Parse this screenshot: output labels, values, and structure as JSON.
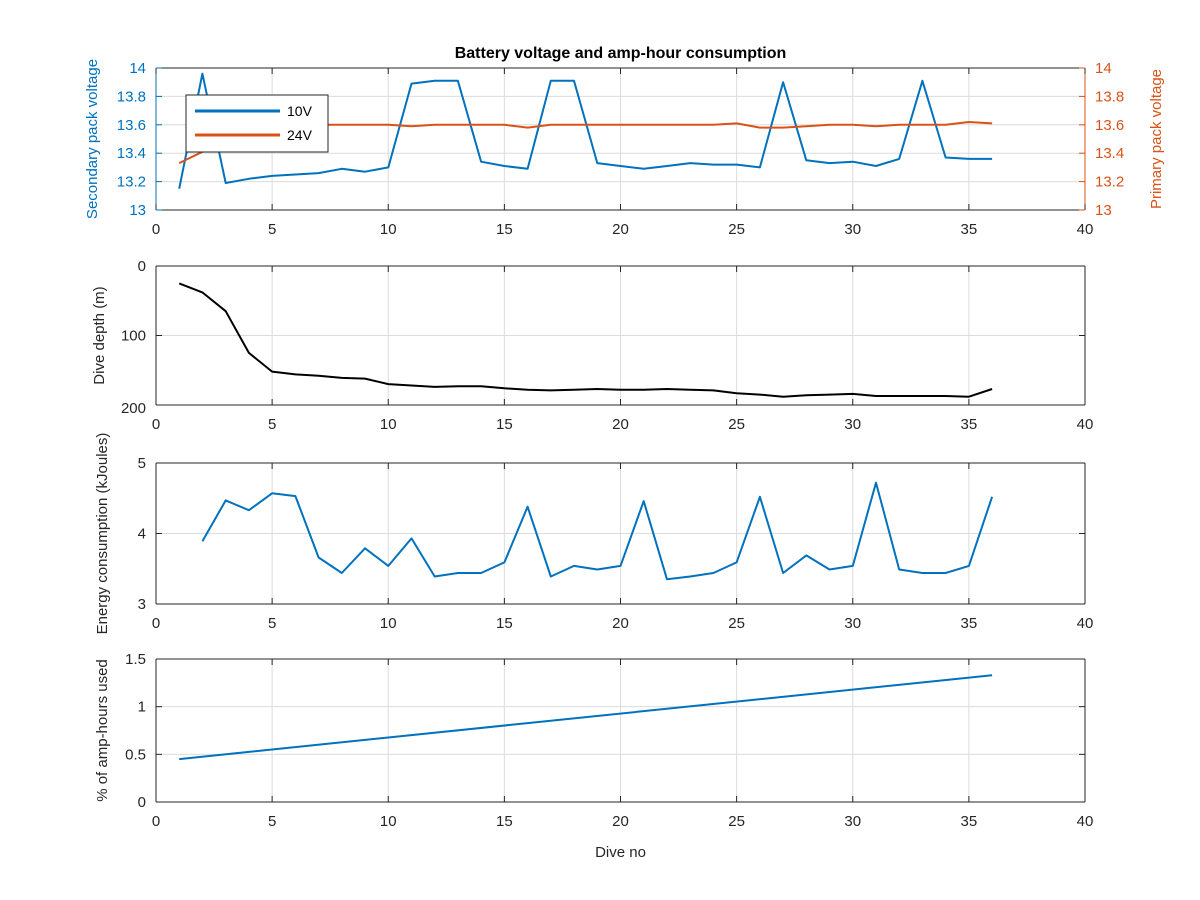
{
  "colors": {
    "blue": "#0072BD",
    "orange": "#D95319",
    "left_axis_blue": "#0072BD",
    "right_axis_orange": "#D95319",
    "black": "#000000",
    "grid": "#dcdcdc",
    "axes": "#262626"
  },
  "chart_data": [
    {
      "type": "line",
      "title": "Battery voltage and amp-hour consumption",
      "xlabel": "",
      "ylabel": "Secondary pack voltage",
      "ylabel_right": "Primary pack voltage",
      "xlim": [
        0,
        40
      ],
      "ylim": [
        13,
        14
      ],
      "ylim_right": [
        13,
        14
      ],
      "xticks": [
        "0",
        "5",
        "10",
        "15",
        "20",
        "25",
        "30",
        "35",
        "40"
      ],
      "yticks": [
        "13",
        "13.2",
        "13.4",
        "13.6",
        "13.8",
        "14"
      ],
      "yticks_right": [
        "13",
        "13.2",
        "13.4",
        "13.6",
        "13.8",
        "14"
      ],
      "grid": true,
      "legend_position": "top-left",
      "x": [
        1,
        2,
        3,
        4,
        5,
        6,
        7,
        8,
        9,
        10,
        11,
        12,
        13,
        14,
        15,
        16,
        17,
        18,
        19,
        20,
        21,
        22,
        23,
        24,
        25,
        26,
        27,
        28,
        29,
        30,
        31,
        32,
        33,
        34,
        35,
        36
      ],
      "series": [
        {
          "name": "10V",
          "axis": "left",
          "color": "#0072BD",
          "values": [
            13.15,
            13.96,
            13.19,
            13.22,
            13.24,
            13.25,
            13.26,
            13.29,
            13.27,
            13.3,
            13.89,
            13.91,
            13.91,
            13.34,
            13.31,
            13.29,
            13.91,
            13.91,
            13.33,
            13.31,
            13.29,
            13.31,
            13.33,
            13.32,
            13.32,
            13.3,
            13.9,
            13.35,
            13.33,
            13.34,
            13.31,
            13.36,
            13.91,
            13.37,
            13.36,
            13.36
          ]
        },
        {
          "name": "24V",
          "axis": "right",
          "color": "#D95319",
          "values": [
            13.33,
            13.41,
            13.59,
            13.6,
            13.6,
            13.6,
            13.6,
            13.6,
            13.6,
            13.6,
            13.59,
            13.6,
            13.6,
            13.6,
            13.6,
            13.58,
            13.6,
            13.6,
            13.6,
            13.6,
            13.6,
            13.6,
            13.6,
            13.6,
            13.61,
            13.58,
            13.58,
            13.59,
            13.6,
            13.6,
            13.59,
            13.6,
            13.6,
            13.6,
            13.62,
            13.61
          ]
        }
      ]
    },
    {
      "type": "line",
      "title": "",
      "xlabel": "",
      "ylabel": "Dive depth (m)",
      "xlim": [
        0,
        40
      ],
      "ylim": [
        0,
        200
      ],
      "y_reversed": true,
      "xticks": [
        "0",
        "5",
        "10",
        "15",
        "20",
        "25",
        "30",
        "35",
        "40"
      ],
      "yticks": [
        "0",
        "100",
        "200"
      ],
      "grid": true,
      "x": [
        1,
        2,
        3,
        4,
        5,
        6,
        7,
        8,
        9,
        10,
        11,
        12,
        13,
        14,
        15,
        16,
        17,
        18,
        19,
        20,
        21,
        22,
        23,
        24,
        25,
        26,
        27,
        28,
        29,
        30,
        31,
        32,
        33,
        34,
        35,
        36
      ],
      "series": [
        {
          "color": "#000000",
          "values": [
            25,
            38,
            65,
            125,
            152,
            156,
            158,
            161,
            162,
            170,
            172,
            174,
            173,
            173,
            176,
            178,
            179,
            178,
            177,
            178,
            178,
            177,
            178,
            179,
            183,
            185,
            188,
            186,
            185,
            184,
            187,
            187,
            187,
            187,
            188,
            177
          ]
        }
      ]
    },
    {
      "type": "line",
      "title": "",
      "xlabel": "",
      "ylabel": "Energy consumption (kJoules)",
      "xlim": [
        0,
        40
      ],
      "ylim": [
        3,
        5
      ],
      "xticks": [
        "0",
        "5",
        "10",
        "15",
        "20",
        "25",
        "30",
        "35",
        "40"
      ],
      "yticks": [
        "3",
        "4",
        "5"
      ],
      "grid": true,
      "x": [
        2,
        3,
        4,
        5,
        6,
        7,
        8,
        9,
        10,
        11,
        12,
        13,
        14,
        15,
        16,
        17,
        18,
        19,
        20,
        21,
        22,
        23,
        24,
        25,
        26,
        27,
        28,
        29,
        30,
        31,
        32,
        33,
        34,
        35,
        36
      ],
      "series": [
        {
          "color": "#0072BD",
          "values": [
            3.89,
            4.47,
            4.33,
            4.57,
            4.53,
            3.66,
            3.44,
            3.79,
            3.54,
            3.93,
            3.39,
            3.44,
            3.44,
            3.59,
            4.38,
            3.39,
            3.54,
            3.49,
            3.54,
            4.46,
            3.35,
            3.39,
            3.44,
            3.59,
            4.52,
            3.44,
            3.69,
            3.49,
            3.54,
            4.72,
            3.49,
            3.44,
            3.44,
            3.54,
            4.52
          ]
        }
      ]
    },
    {
      "type": "line",
      "title": "",
      "xlabel": "Dive no",
      "ylabel": "% of amp-hours used",
      "xlim": [
        0,
        40
      ],
      "ylim": [
        0,
        1.5
      ],
      "xticks": [
        "0",
        "5",
        "10",
        "15",
        "20",
        "25",
        "30",
        "35",
        "40"
      ],
      "yticks": [
        "0",
        "0.5",
        "1",
        "1.5"
      ],
      "grid": true,
      "x": [
        1,
        36
      ],
      "series": [
        {
          "color": "#0072BD",
          "values": [
            0.45,
            1.33
          ]
        }
      ]
    }
  ]
}
